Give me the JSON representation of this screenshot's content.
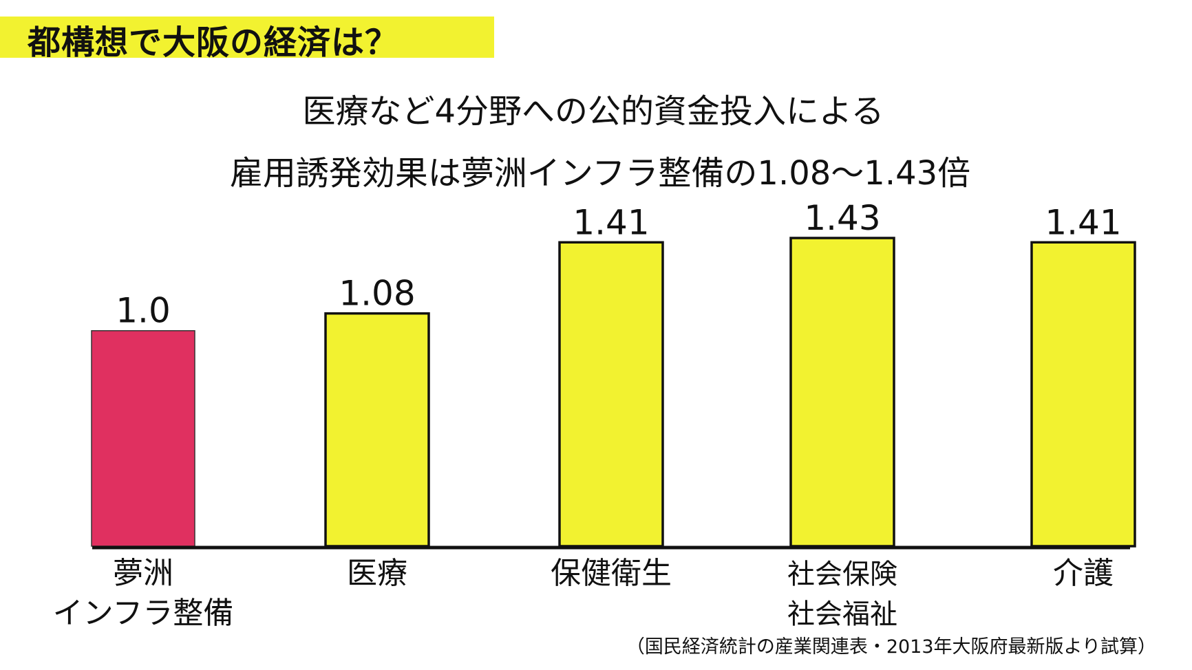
{
  "header": {
    "title": "都構想で大阪の経済は？",
    "band_color": "#f2f230"
  },
  "headline": {
    "line1": "医療など4分野への公的資金投入による",
    "line2": "雇用誘発効果は夢洲インフラ整備の1.08〜1.43倍"
  },
  "chart_data": {
    "type": "bar",
    "categories": [
      [
        "夢洲",
        "インフラ整備"
      ],
      [
        "医療"
      ],
      [
        "保健衛生"
      ],
      [
        "社会保険",
        "社会福祉"
      ],
      [
        "介護"
      ]
    ],
    "values": [
      1.0,
      1.08,
      1.41,
      1.43,
      1.41
    ],
    "value_labels": [
      "1.0",
      "1.08",
      "1.41",
      "1.43",
      "1.41"
    ],
    "ylim": [
      0,
      1.43
    ],
    "grid": false,
    "bar_colors": [
      "#e03060",
      "#f2f230",
      "#f2f230",
      "#f2f230",
      "#f2f230"
    ],
    "title": "",
    "xlabel": "",
    "ylabel": ""
  },
  "source_note": "（国民経済統計の産業関連表・2013年大阪府最新版より試算）"
}
